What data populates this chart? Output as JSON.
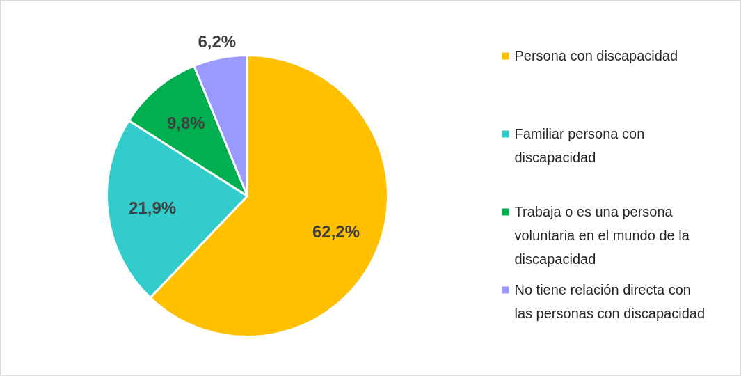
{
  "chart_data": {
    "type": "pie",
    "categories": [
      "Persona con discapacidad",
      "Familiar persona con discapacidad",
      "Trabaja o es una persona voluntaria en el mundo de la discapacidad",
      "No tiene relación directa con las personas con discapacidad"
    ],
    "values": [
      62.2,
      21.9,
      9.8,
      6.2
    ],
    "colors": [
      "#ffc000",
      "#33cccc",
      "#00b050",
      "#9999ff"
    ],
    "value_labels": [
      "62,2%",
      "21,9%",
      "9,8%",
      "6,2%"
    ],
    "legend": "right"
  }
}
